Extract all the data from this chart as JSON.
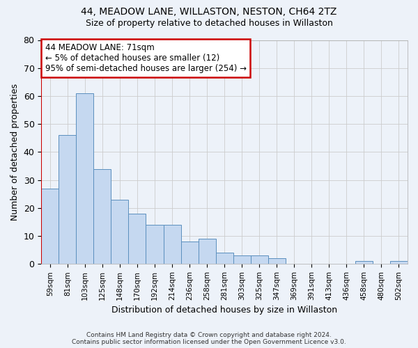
{
  "title1": "44, MEADOW LANE, WILLASTON, NESTON, CH64 2TZ",
  "title2": "Size of property relative to detached houses in Willaston",
  "xlabel": "Distribution of detached houses by size in Willaston",
  "ylabel": "Number of detached properties",
  "categories": [
    "59sqm",
    "81sqm",
    "103sqm",
    "125sqm",
    "148sqm",
    "170sqm",
    "192sqm",
    "214sqm",
    "236sqm",
    "258sqm",
    "281sqm",
    "303sqm",
    "325sqm",
    "347sqm",
    "369sqm",
    "391sqm",
    "413sqm",
    "436sqm",
    "458sqm",
    "480sqm",
    "502sqm"
  ],
  "values": [
    27,
    46,
    61,
    34,
    23,
    18,
    14,
    14,
    8,
    9,
    4,
    3,
    3,
    2,
    0,
    0,
    0,
    0,
    1,
    0,
    1
  ],
  "bar_color": "#c5d8f0",
  "bar_edge_color": "#5b8fbe",
  "ylim": [
    0,
    80
  ],
  "yticks": [
    0,
    10,
    20,
    30,
    40,
    50,
    60,
    70,
    80
  ],
  "annotation_text": "44 MEADOW LANE: 71sqm\n← 5% of detached houses are smaller (12)\n95% of semi-detached houses are larger (254) →",
  "annotation_box_color": "#ffffff",
  "annotation_box_edge": "#cc0000",
  "vline_color": "#cc0000",
  "footnote1": "Contains HM Land Registry data © Crown copyright and database right 2024.",
  "footnote2": "Contains public sector information licensed under the Open Government Licence v3.0.",
  "grid_color": "#cccccc",
  "background_color": "#edf2f9"
}
